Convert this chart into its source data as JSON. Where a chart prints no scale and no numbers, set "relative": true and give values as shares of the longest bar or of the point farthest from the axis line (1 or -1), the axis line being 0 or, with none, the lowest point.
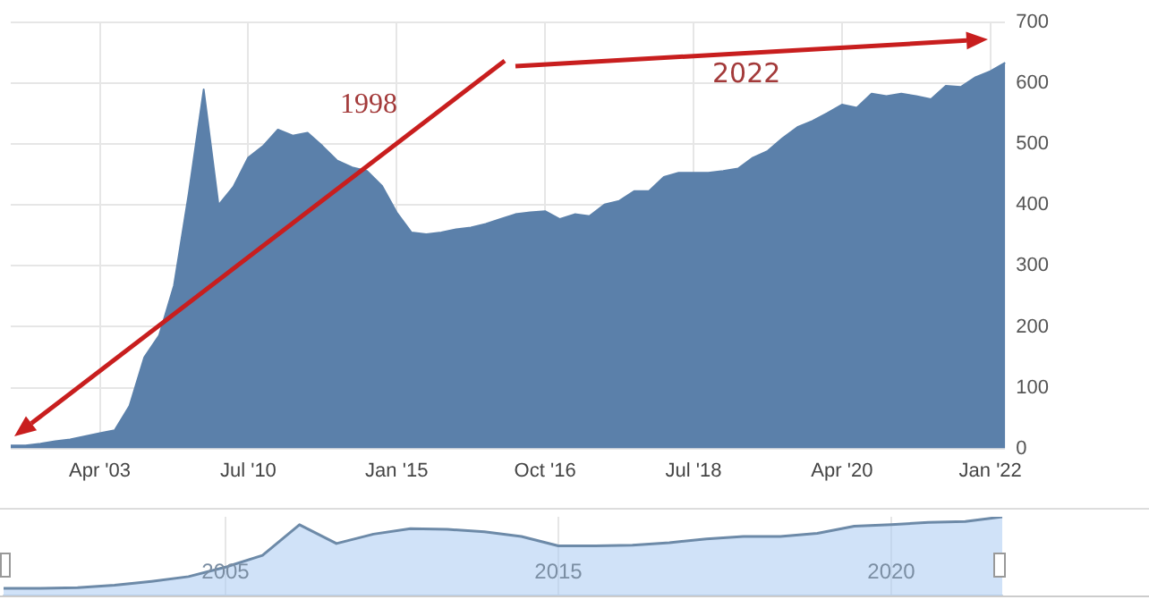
{
  "chart_data": [
    {
      "type": "area",
      "color": "#5b80aa",
      "annotations": [
        "1998",
        "2022"
      ],
      "categories": [
        null,
        null,
        null,
        null,
        null,
        null,
        "Apr '03",
        null,
        null,
        null,
        null,
        null,
        null,
        null,
        null,
        null,
        "Jul '10",
        null,
        null,
        null,
        null,
        null,
        null,
        null,
        null,
        null,
        "Jan '15",
        null,
        null,
        null,
        null,
        null,
        null,
        null,
        null,
        null,
        "Oct '16",
        null,
        null,
        null,
        null,
        null,
        null,
        null,
        null,
        null,
        "Jul '18",
        null,
        null,
        null,
        null,
        null,
        null,
        null,
        null,
        null,
        "Apr '20",
        null,
        null,
        null,
        null,
        null,
        null,
        null,
        null,
        null,
        "Jan '22",
        null
      ],
      "values": [
        5,
        5,
        8,
        12,
        15,
        20,
        25,
        30,
        70,
        150,
        186,
        268,
        420,
        590,
        400,
        430,
        478,
        497,
        524,
        514,
        519,
        497,
        473,
        462,
        456,
        432,
        388,
        355,
        352,
        355,
        360,
        363,
        369,
        377,
        385,
        388,
        390,
        377,
        385,
        382,
        401,
        407,
        423,
        423,
        446,
        453,
        453,
        453,
        456,
        460,
        478,
        489,
        510,
        528,
        538,
        551,
        565,
        560,
        583,
        579,
        583,
        579,
        574,
        596,
        594,
        610,
        620,
        634
      ],
      "ylim": [
        0,
        700
      ],
      "yticks": [
        0,
        100,
        200,
        300,
        400,
        500,
        600,
        700
      ],
      "grid": true
    },
    {
      "type": "area",
      "color": "#6d8aa8",
      "relative": true,
      "tick_labels": "x",
      "grid": "x",
      "categories": [
        null,
        null,
        null,
        null,
        null,
        null,
        "2005",
        null,
        null,
        null,
        null,
        null,
        null,
        null,
        null,
        "2015",
        null,
        null,
        null,
        null,
        null,
        null,
        null,
        null,
        "2020",
        null,
        null,
        null
      ],
      "values": [
        0.09,
        0.09,
        0.1,
        0.13,
        0.18,
        0.24,
        0.36,
        0.51,
        0.9,
        0.66,
        0.78,
        0.85,
        0.84,
        0.81,
        0.75,
        0.63,
        0.63,
        0.64,
        0.67,
        0.72,
        0.75,
        0.75,
        0.79,
        0.88,
        0.9,
        0.93,
        0.94,
        1
      ]
    }
  ]
}
